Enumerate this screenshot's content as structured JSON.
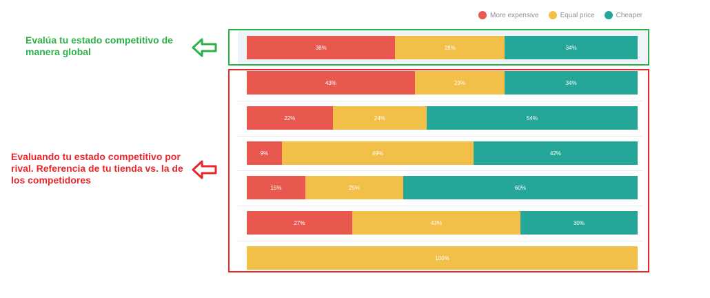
{
  "legend": {
    "items": [
      {
        "label": "More expensive",
        "color": "#e8584f"
      },
      {
        "label": "Equal price",
        "color": "#f2bf48"
      },
      {
        "label": "Cheaper",
        "color": "#24a698"
      }
    ]
  },
  "annotations": {
    "global": "Evalúa tu estado competitivo de manera global",
    "rival": "Evaluando tu estado competitivo por rival. Referencia de tu tienda vs. la de los competidores"
  },
  "colors": {
    "more_expensive": "#e8584f",
    "equal_price": "#f2bf48",
    "cheaper": "#24a698",
    "green_highlight": "#2fb14a",
    "red_highlight": "#e8262c"
  },
  "chart_data": {
    "type": "bar",
    "orientation": "horizontal",
    "stacked": true,
    "series": [
      {
        "name": "More expensive",
        "values": [
          38,
          43,
          22,
          9,
          15,
          27,
          0
        ]
      },
      {
        "name": "Equal price",
        "values": [
          28,
          23,
          24,
          49,
          25,
          43,
          100
        ]
      },
      {
        "name": "Cheaper",
        "values": [
          34,
          34,
          54,
          42,
          60,
          30,
          0
        ]
      }
    ],
    "unit": "%",
    "xlim": [
      0,
      100
    ],
    "legend_position": "top-right",
    "grid": false
  }
}
